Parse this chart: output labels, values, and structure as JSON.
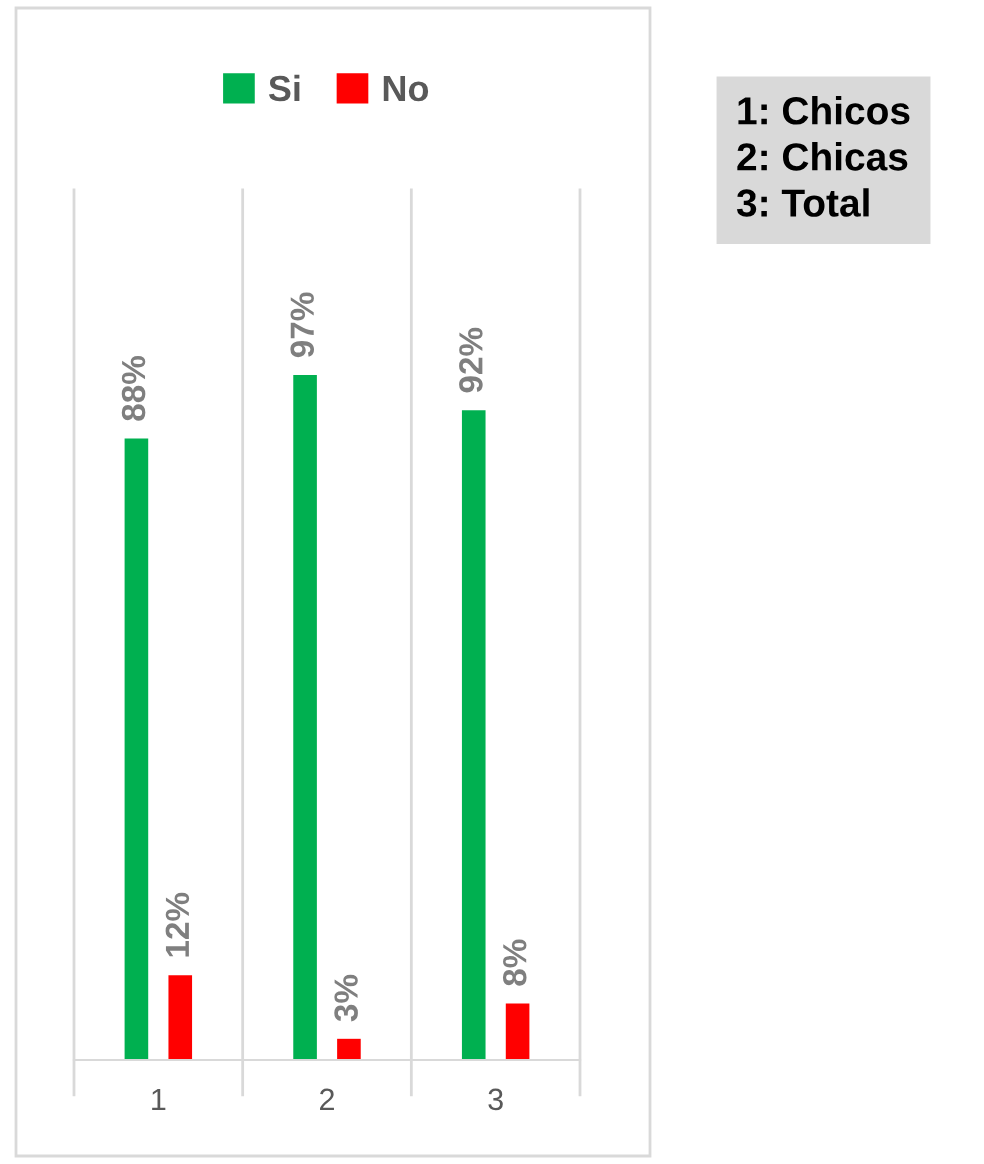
{
  "chart_data": {
    "type": "bar",
    "categories": [
      "1",
      "2",
      "3"
    ],
    "series": [
      {
        "name": "Si",
        "color": "#00b050",
        "values": [
          88,
          97,
          92
        ],
        "value_labels": [
          "88%",
          "97%",
          "92%"
        ]
      },
      {
        "name": "No",
        "color": "#ff0000",
        "values": [
          12,
          3,
          8
        ],
        "value_labels": [
          "12%",
          "3%",
          "8%"
        ]
      }
    ],
    "grid": "x",
    "legend": "top",
    "annotations": [
      "1: Chicos\n2: Chicas\n3: Total"
    ]
  }
}
